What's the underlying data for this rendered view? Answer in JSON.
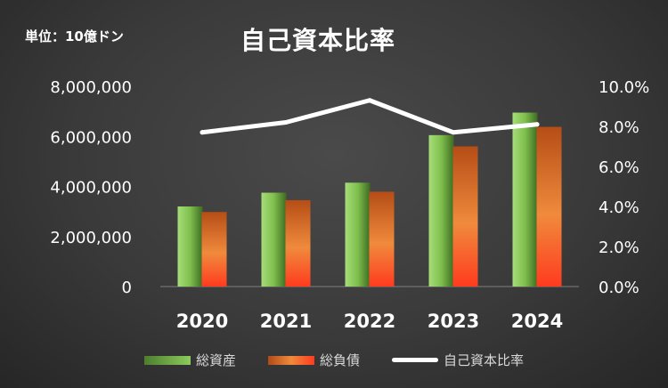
{
  "chart_data": {
    "type": "bar+line",
    "title": "自己資本比率",
    "unit_label": "単位：10億ドン",
    "categories": [
      "2020",
      "2021",
      "2022",
      "2023",
      "2024"
    ],
    "series": [
      {
        "name": "総資産",
        "type": "bar",
        "axis": "left",
        "values": [
          3200000,
          3750000,
          4150000,
          6050000,
          6950000
        ]
      },
      {
        "name": "総負債",
        "type": "bar",
        "axis": "left",
        "values": [
          2980000,
          3450000,
          3790000,
          5600000,
          6380000
        ]
      },
      {
        "name": "自己資本比率",
        "type": "line",
        "axis": "right",
        "values": [
          0.077,
          0.082,
          0.093,
          0.077,
          0.081
        ]
      }
    ],
    "y_left": {
      "min": 0,
      "max": 8000000,
      "ticks": [
        "0",
        "2,000,000",
        "4,000,000",
        "6,000,000",
        "8,000,000"
      ]
    },
    "y_right": {
      "min": 0,
      "max": 0.1,
      "ticks": [
        "0.0%",
        "2.0%",
        "4.0%",
        "6.0%",
        "8.0%",
        "10.0%"
      ]
    },
    "grid": false,
    "legend": "bottom",
    "colors": {
      "assets": "#7fbf4d",
      "liabilities": "#e8762d",
      "line": "#ffffff"
    }
  }
}
